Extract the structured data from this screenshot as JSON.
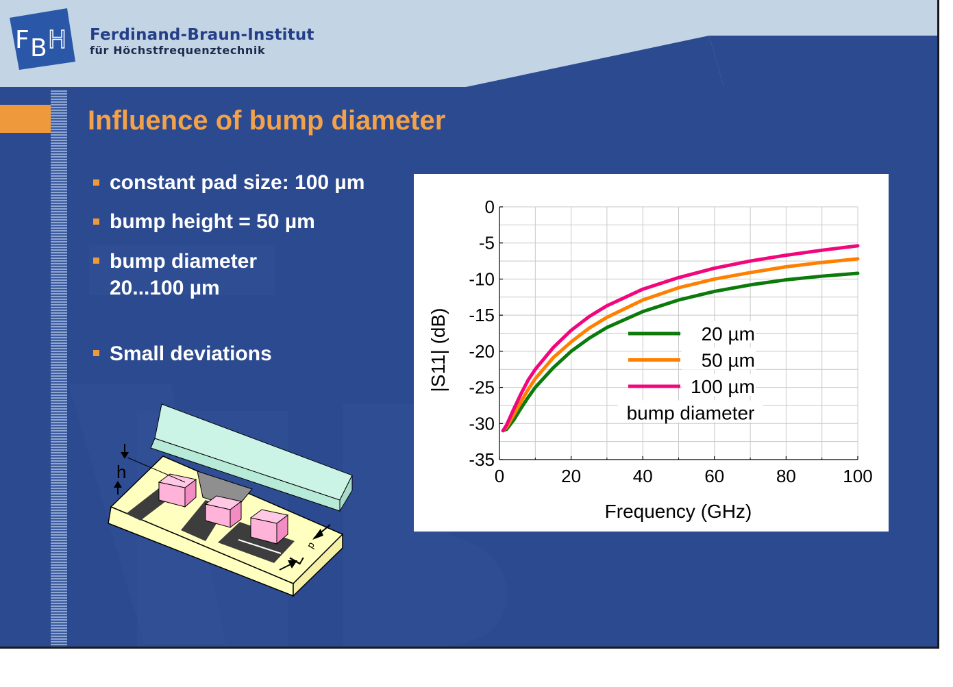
{
  "header": {
    "logo_text": "FBH",
    "org_name": "Ferdinand-Braun-Institut",
    "org_subtitle": "für Höchstfrequenztechnik"
  },
  "slide": {
    "title": "Influence of bump diameter",
    "bullets": [
      {
        "text": "constant pad size: 100 µm"
      },
      {
        "text": "bump height = 50 µm"
      },
      {
        "text": "bump diameter\n20...100 µm"
      },
      {
        "text": "Small deviations"
      }
    ]
  },
  "illustration": {
    "label_h": "h",
    "label_lp": "L",
    "label_lp_sub": "p"
  },
  "colors": {
    "slide_bg": "#2c4a8f",
    "header_bg": "#c3d4e5",
    "title": "#f3a24a",
    "accent": "#ee9a3c"
  },
  "chart_data": {
    "type": "line",
    "title": "",
    "xlabel": "Frequency (GHz)",
    "ylabel": "|S11| (dB)",
    "xlim": [
      0,
      100
    ],
    "ylim": [
      -35,
      0
    ],
    "x_ticks": [
      0,
      20,
      40,
      60,
      80,
      100
    ],
    "y_ticks": [
      0,
      -5,
      -10,
      -15,
      -20,
      -25,
      -30,
      -35
    ],
    "grid": true,
    "legend_position": "center-right",
    "legend_caption": "bump diameter",
    "x": [
      1,
      2,
      4,
      6,
      8,
      10,
      15,
      20,
      25,
      30,
      40,
      50,
      60,
      70,
      80,
      90,
      100
    ],
    "series": [
      {
        "name": "20 µm",
        "color": "#0b7a0b",
        "values": [
          -31,
          -30.8,
          -29.5,
          -27.9,
          -26.4,
          -25,
          -22.3,
          -20,
          -18.2,
          -16.7,
          -14.5,
          -12.9,
          -11.7,
          -10.8,
          -10.1,
          -9.6,
          -9.2
        ]
      },
      {
        "name": "50 µm",
        "color": "#ff8000",
        "values": [
          -31,
          -30.5,
          -28.8,
          -27,
          -25.3,
          -23.8,
          -20.9,
          -18.7,
          -16.8,
          -15.3,
          -12.9,
          -11.2,
          -10,
          -9.1,
          -8.3,
          -7.7,
          -7.2
        ]
      },
      {
        "name": "100 µm",
        "color": "#f2067c",
        "values": [
          -31,
          -30.2,
          -28,
          -25.9,
          -24,
          -22.5,
          -19.5,
          -17.1,
          -15.2,
          -13.7,
          -11.4,
          -9.8,
          -8.5,
          -7.5,
          -6.7,
          -6,
          -5.4
        ]
      }
    ]
  }
}
